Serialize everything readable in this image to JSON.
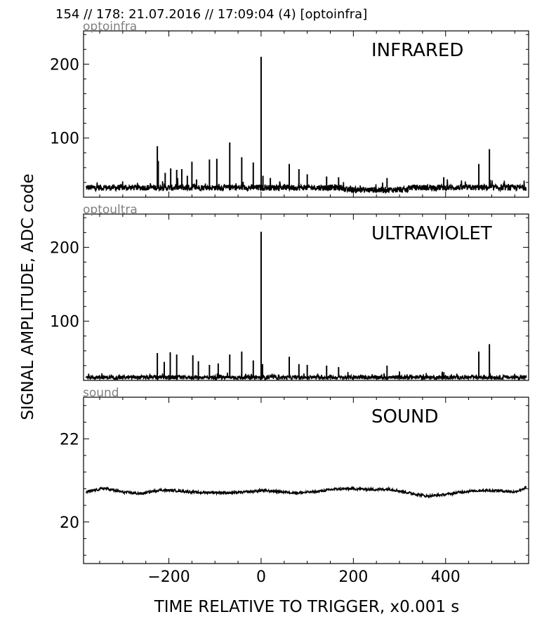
{
  "header": "154 // 178:   21.07.2016 // 17:09:04 (4)  [optoinfra]",
  "ylabel": "SIGNAL AMPLITUDE,  ADC code",
  "xlabel": "TIME RELATIVE TO TRIGGER,   x0.001 s",
  "chart_data": [
    {
      "type": "line",
      "source_label": "optoinfra",
      "title": "INFRARED",
      "xlim": [
        -385,
        580
      ],
      "ylim": [
        20,
        245
      ],
      "xticks": [
        -200,
        0,
        200,
        400
      ],
      "xtick_labels": [
        "−200",
        "0",
        "200",
        "400"
      ],
      "yticks": [
        100,
        200
      ],
      "ytick_labels": [
        "100",
        "200"
      ],
      "baseline": 33,
      "noise": 4,
      "series": [
        {
          "spikes": [
            {
              "x": -225,
              "y": 89
            },
            {
              "x": -223,
              "y": 69
            },
            {
              "x": -208,
              "y": 53
            },
            {
              "x": -196,
              "y": 59
            },
            {
              "x": -183,
              "y": 57
            },
            {
              "x": -172,
              "y": 58
            },
            {
              "x": -160,
              "y": 49
            },
            {
              "x": -150,
              "y": 68
            },
            {
              "x": -140,
              "y": 44
            },
            {
              "x": -112,
              "y": 71
            },
            {
              "x": -96,
              "y": 72
            },
            {
              "x": -68,
              "y": 94
            },
            {
              "x": -42,
              "y": 74
            },
            {
              "x": -17,
              "y": 67
            },
            {
              "x": 0,
              "y": 210
            },
            {
              "x": 4,
              "y": 49
            },
            {
              "x": 20,
              "y": 46
            },
            {
              "x": 61,
              "y": 65
            },
            {
              "x": 82,
              "y": 58
            },
            {
              "x": 100,
              "y": 51
            },
            {
              "x": 142,
              "y": 48
            },
            {
              "x": 168,
              "y": 47
            },
            {
              "x": 273,
              "y": 46
            },
            {
              "x": 396,
              "y": 47
            },
            {
              "x": 472,
              "y": 65
            },
            {
              "x": 495,
              "y": 85
            }
          ]
        }
      ]
    },
    {
      "type": "line",
      "source_label": "optoultra",
      "title": "ULTRAVIOLET",
      "xlim": [
        -385,
        580
      ],
      "ylim": [
        20,
        245
      ],
      "xticks": [
        -200,
        0,
        200,
        400
      ],
      "xtick_labels": [
        "−200",
        "0",
        "200",
        "400"
      ],
      "yticks": [
        100,
        200
      ],
      "ytick_labels": [
        "100",
        "200"
      ],
      "baseline": 24,
      "noise": 2.5,
      "series": [
        {
          "spikes": [
            {
              "x": -225,
              "y": 57
            },
            {
              "x": -210,
              "y": 45
            },
            {
              "x": -197,
              "y": 58
            },
            {
              "x": -183,
              "y": 55
            },
            {
              "x": -148,
              "y": 54
            },
            {
              "x": -136,
              "y": 46
            },
            {
              "x": -112,
              "y": 41
            },
            {
              "x": -93,
              "y": 43
            },
            {
              "x": -68,
              "y": 55
            },
            {
              "x": -42,
              "y": 59
            },
            {
              "x": -17,
              "y": 47
            },
            {
              "x": 0,
              "y": 221
            },
            {
              "x": 3,
              "y": 42
            },
            {
              "x": 61,
              "y": 52
            },
            {
              "x": 82,
              "y": 42
            },
            {
              "x": 100,
              "y": 41
            },
            {
              "x": 142,
              "y": 40
            },
            {
              "x": 168,
              "y": 38
            },
            {
              "x": 273,
              "y": 40
            },
            {
              "x": 472,
              "y": 59
            },
            {
              "x": 495,
              "y": 69
            }
          ]
        }
      ]
    },
    {
      "type": "line",
      "source_label": "sound",
      "title": "SOUND",
      "xlim": [
        -385,
        580
      ],
      "ylim": [
        19,
        23
      ],
      "xticks": [
        -200,
        0,
        200,
        400
      ],
      "xtick_labels": [
        "−200",
        "0",
        "200",
        "400"
      ],
      "yticks": [
        20,
        22
      ],
      "ytick_labels": [
        "20",
        "22"
      ],
      "series": [
        {
          "x": [
            -380,
            -340,
            -300,
            -260,
            -220,
            -180,
            -140,
            -100,
            -60,
            -20,
            0,
            40,
            80,
            120,
            160,
            200,
            240,
            280,
            320,
            360,
            400,
            440,
            480,
            520,
            550,
            575
          ],
          "y": [
            20.72,
            20.81,
            20.72,
            20.68,
            20.77,
            20.75,
            20.71,
            20.71,
            20.7,
            20.73,
            20.76,
            20.73,
            20.7,
            20.73,
            20.79,
            20.8,
            20.78,
            20.79,
            20.7,
            20.62,
            20.66,
            20.73,
            20.76,
            20.75,
            20.72,
            20.83
          ]
        }
      ]
    }
  ]
}
